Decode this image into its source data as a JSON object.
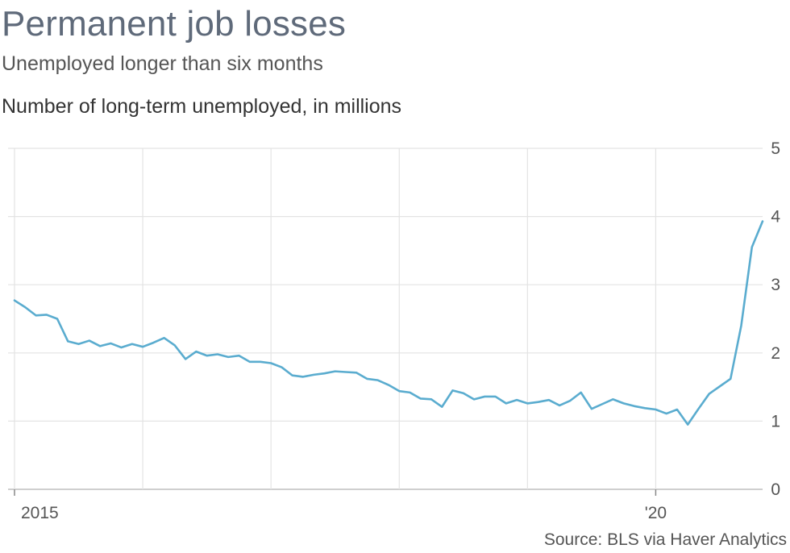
{
  "header": {
    "title": "Permanent job losses",
    "subtitle": "Unemployed longer than six months",
    "unit_label": "Number of long-term unemployed, in millions"
  },
  "footer": {
    "source": "Source: BLS via Haver Analytics"
  },
  "colors": {
    "line": "#5aaccf",
    "grid": "#e3e3e3",
    "axis": "#cfcfcf",
    "text": "#555555"
  },
  "chart_data": {
    "type": "line",
    "title": "Permanent job losses",
    "subtitle": "Unemployed longer than six months",
    "ylabel": "Number of long-term unemployed, in millions",
    "xlim": [
      "2015-01",
      "2020-11"
    ],
    "ylim": [
      0,
      5
    ],
    "y_ticks": [
      0,
      1,
      2,
      3,
      4,
      5
    ],
    "x_tick_labels": [
      {
        "x": "2015-01",
        "label": "2015"
      },
      {
        "x": "2020-01",
        "label": "'20"
      }
    ],
    "grid": true,
    "series": [
      {
        "x": [
          "2015-01",
          "2015-02",
          "2015-03",
          "2015-04",
          "2015-05",
          "2015-06",
          "2015-07",
          "2015-08",
          "2015-09",
          "2015-10",
          "2015-11",
          "2015-12",
          "2016-01",
          "2016-02",
          "2016-03",
          "2016-04",
          "2016-05",
          "2016-06",
          "2016-07",
          "2016-08",
          "2016-09",
          "2016-10",
          "2016-11",
          "2016-12",
          "2017-01",
          "2017-02",
          "2017-03",
          "2017-04",
          "2017-05",
          "2017-06",
          "2017-07",
          "2017-08",
          "2017-09",
          "2017-10",
          "2017-11",
          "2017-12",
          "2018-01",
          "2018-02",
          "2018-03",
          "2018-04",
          "2018-05",
          "2018-06",
          "2018-07",
          "2018-08",
          "2018-09",
          "2018-10",
          "2018-11",
          "2018-12",
          "2019-01",
          "2019-02",
          "2019-03",
          "2019-04",
          "2019-05",
          "2019-06",
          "2019-07",
          "2019-08",
          "2019-09",
          "2019-10",
          "2019-11",
          "2019-12",
          "2020-01",
          "2020-02",
          "2020-03",
          "2020-04",
          "2020-05",
          "2020-06",
          "2020-07",
          "2020-08",
          "2020-09",
          "2020-10",
          "2020-11"
        ],
        "values": [
          2.77,
          2.67,
          2.55,
          2.56,
          2.5,
          2.17,
          2.13,
          2.18,
          2.1,
          2.14,
          2.08,
          2.13,
          2.09,
          2.15,
          2.22,
          2.11,
          1.91,
          2.02,
          1.96,
          1.98,
          1.94,
          1.96,
          1.87,
          1.87,
          1.85,
          1.79,
          1.67,
          1.65,
          1.68,
          1.7,
          1.73,
          1.72,
          1.71,
          1.62,
          1.6,
          1.53,
          1.44,
          1.42,
          1.33,
          1.32,
          1.21,
          1.45,
          1.41,
          1.32,
          1.36,
          1.36,
          1.26,
          1.31,
          1.26,
          1.28,
          1.31,
          1.23,
          1.3,
          1.42,
          1.18,
          1.25,
          1.32,
          1.26,
          1.22,
          1.19,
          1.17,
          1.11,
          1.17,
          0.95,
          1.18,
          1.4,
          1.51,
          1.62,
          2.4,
          3.55,
          3.93
        ]
      }
    ]
  }
}
